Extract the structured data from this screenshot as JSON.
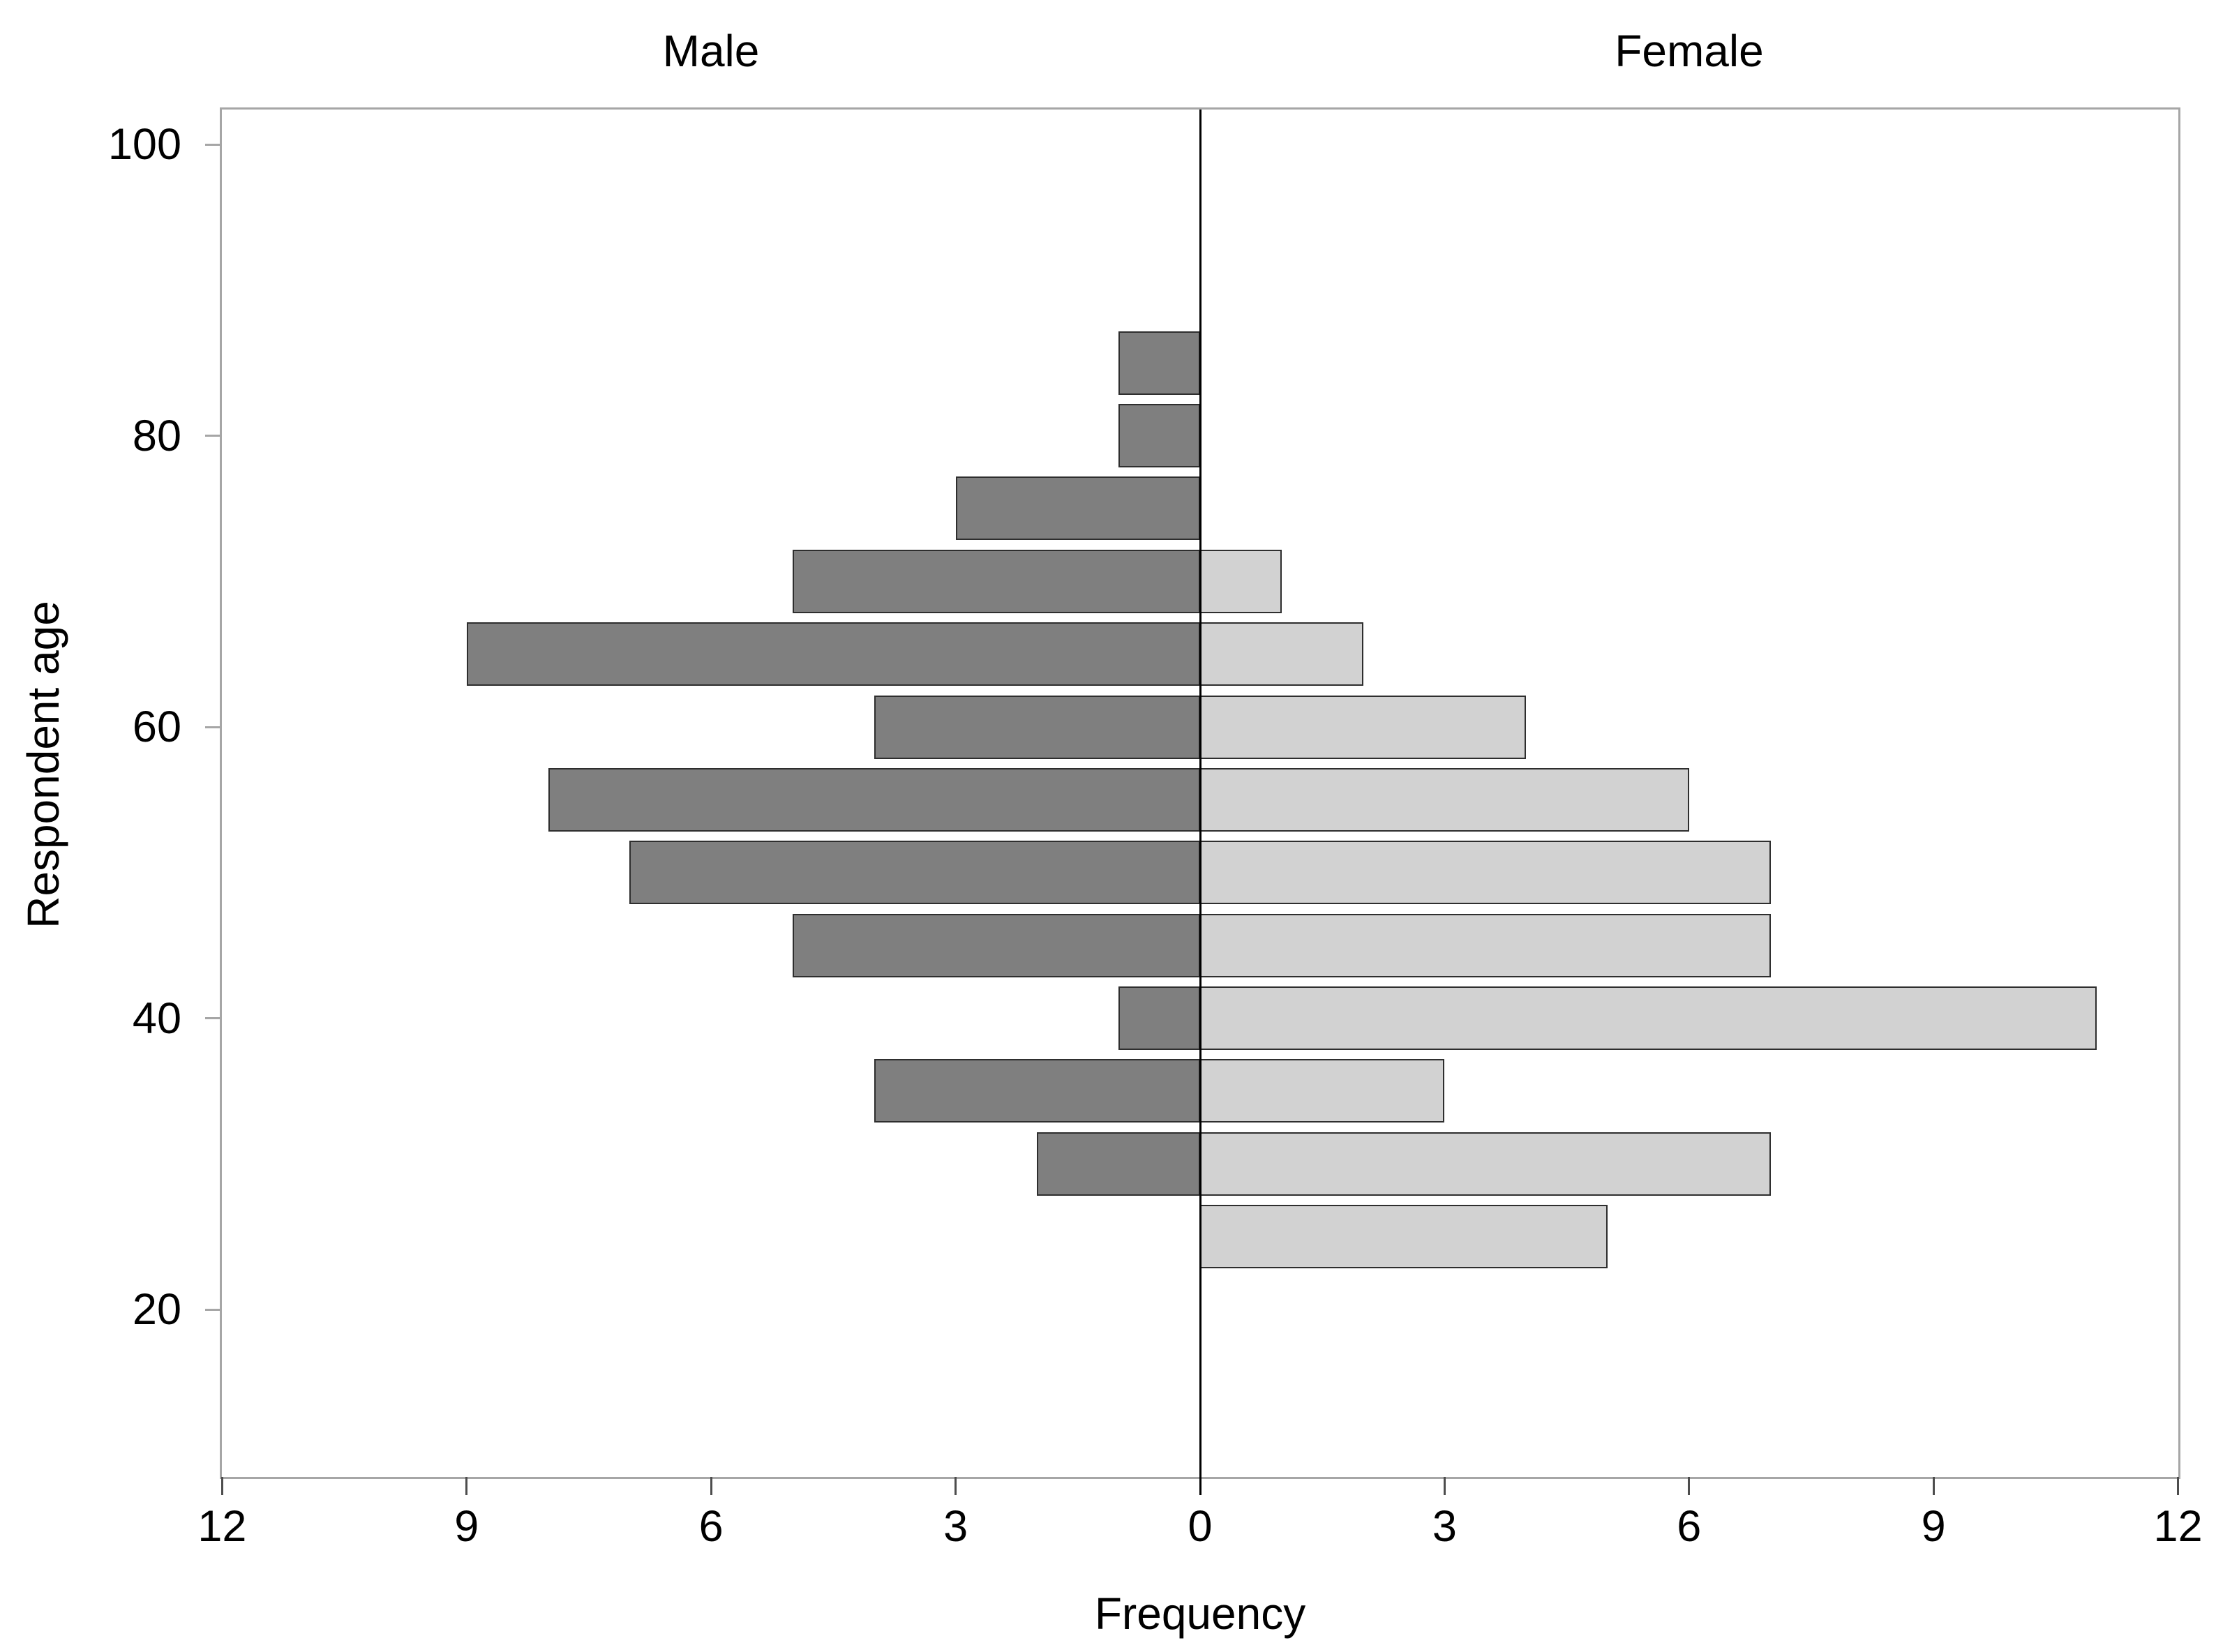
{
  "chart_data": {
    "type": "bar",
    "subtype": "population_pyramid",
    "orientation": "horizontal",
    "title_left": "Male",
    "title_right": "Female",
    "xlabel": "Frequency",
    "ylabel": "Respondent age",
    "age_bin_width": 5,
    "age_bins": [
      85,
      80,
      75,
      70,
      65,
      60,
      55,
      50,
      45,
      40,
      35,
      30,
      25
    ],
    "series": [
      {
        "name": "Male",
        "side": "left",
        "color": "#7f7f7f",
        "values": [
          1,
          1,
          3,
          5,
          9,
          4,
          8,
          7,
          5,
          1,
          4,
          2,
          0
        ]
      },
      {
        "name": "Female",
        "side": "right",
        "color": "#d2d2d2",
        "values": [
          0,
          0,
          0,
          1,
          2,
          4,
          6,
          7,
          7,
          11,
          3,
          7,
          5
        ]
      }
    ],
    "x_axis": {
      "max_each_side": 12,
      "tick_values": [
        -12,
        -9,
        -6,
        -3,
        0,
        3,
        6,
        9,
        12
      ],
      "tick_labels": [
        "12",
        "9",
        "6",
        "3",
        "0",
        "3",
        "6",
        "9",
        "12"
      ]
    },
    "y_axis": {
      "tick_values": [
        100,
        80,
        60,
        40,
        20
      ],
      "tick_labels": [
        "100",
        "80",
        "60",
        "40",
        "20"
      ],
      "range": [
        8.6,
        102.4
      ]
    },
    "legend": "none",
    "grid": "off",
    "styles": {
      "bar_border_color": "#2e2e2e",
      "frame_color": "#a6a6a6",
      "center_line_color": "#000000",
      "text_color": "#000000",
      "background": "#ffffff"
    }
  }
}
